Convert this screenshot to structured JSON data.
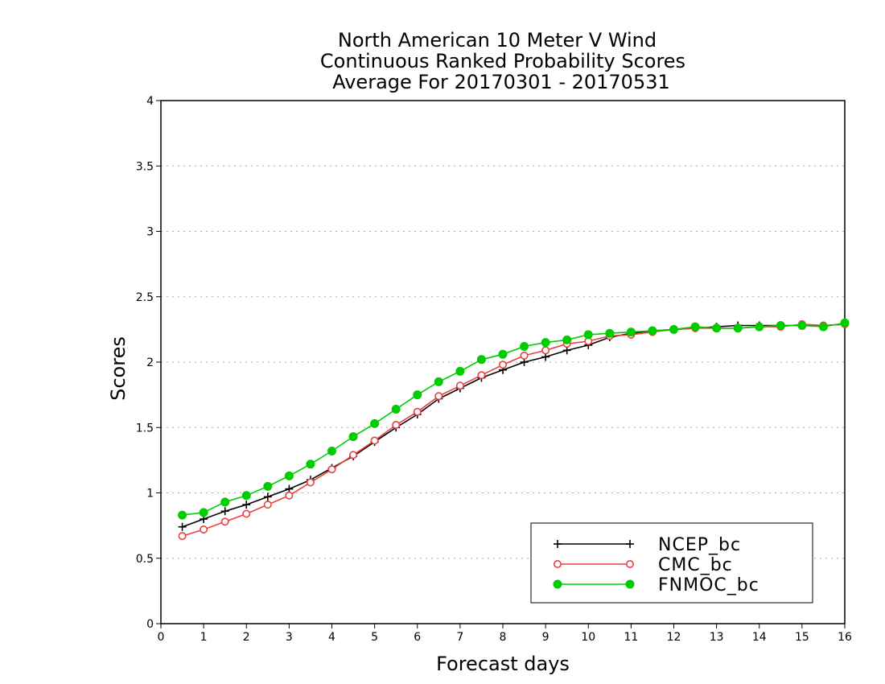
{
  "chart_data": {
    "type": "line",
    "title": [
      "North American 10 Meter V Wind",
      "Continuous Ranked Probability Scores",
      "Average For 20170301 - 20170531"
    ],
    "xlabel": "Forecast days",
    "ylabel": "Scores",
    "xlim": [
      0,
      16
    ],
    "ylim": [
      0,
      4
    ],
    "xticks": [
      0,
      1,
      2,
      3,
      4,
      5,
      6,
      7,
      8,
      9,
      10,
      11,
      12,
      13,
      14,
      15,
      16
    ],
    "yticks": [
      0,
      0.5,
      1,
      1.5,
      2,
      2.5,
      3,
      3.5,
      4
    ],
    "ytick_labels": [
      "0",
      "0.5",
      "1",
      "1.5",
      "2",
      "2.5",
      "3",
      "3.5",
      "4"
    ],
    "grid": "horizontal dotted",
    "legend_position": "bottom-right",
    "x": [
      0.5,
      1,
      1.5,
      2,
      2.5,
      3,
      3.5,
      4,
      4.5,
      5,
      5.5,
      6,
      6.5,
      7,
      7.5,
      8,
      8.5,
      9,
      9.5,
      10,
      10.5,
      11,
      11.5,
      12,
      12.5,
      13,
      13.5,
      14,
      14.5,
      15,
      15.5,
      16
    ],
    "series": [
      {
        "name": "NCEP_bc",
        "color": "#000000",
        "marker": "plus",
        "values": [
          0.74,
          0.8,
          0.86,
          0.91,
          0.97,
          1.03,
          1.1,
          1.19,
          1.28,
          1.39,
          1.5,
          1.6,
          1.72,
          1.8,
          1.88,
          1.94,
          2.0,
          2.04,
          2.09,
          2.13,
          2.19,
          2.22,
          2.24,
          2.25,
          2.26,
          2.27,
          2.28,
          2.28,
          2.28,
          2.28,
          2.28,
          2.29
        ]
      },
      {
        "name": "CMC_bc",
        "color": "#e84040",
        "marker": "open-circle",
        "values": [
          0.67,
          0.72,
          0.78,
          0.84,
          0.91,
          0.98,
          1.08,
          1.18,
          1.29,
          1.4,
          1.52,
          1.62,
          1.74,
          1.82,
          1.9,
          1.98,
          2.05,
          2.09,
          2.14,
          2.16,
          2.2,
          2.21,
          2.23,
          2.25,
          2.26,
          2.26,
          2.26,
          2.27,
          2.27,
          2.29,
          2.28,
          2.29
        ]
      },
      {
        "name": "FNMOC_bc",
        "color": "#00cc00",
        "marker": "filled-circle",
        "values": [
          0.83,
          0.85,
          0.93,
          0.98,
          1.05,
          1.13,
          1.22,
          1.32,
          1.43,
          1.53,
          1.64,
          1.75,
          1.85,
          1.93,
          2.02,
          2.06,
          2.12,
          2.15,
          2.17,
          2.21,
          2.22,
          2.23,
          2.24,
          2.25,
          2.27,
          2.26,
          2.26,
          2.27,
          2.28,
          2.28,
          2.27,
          2.3
        ]
      }
    ]
  }
}
